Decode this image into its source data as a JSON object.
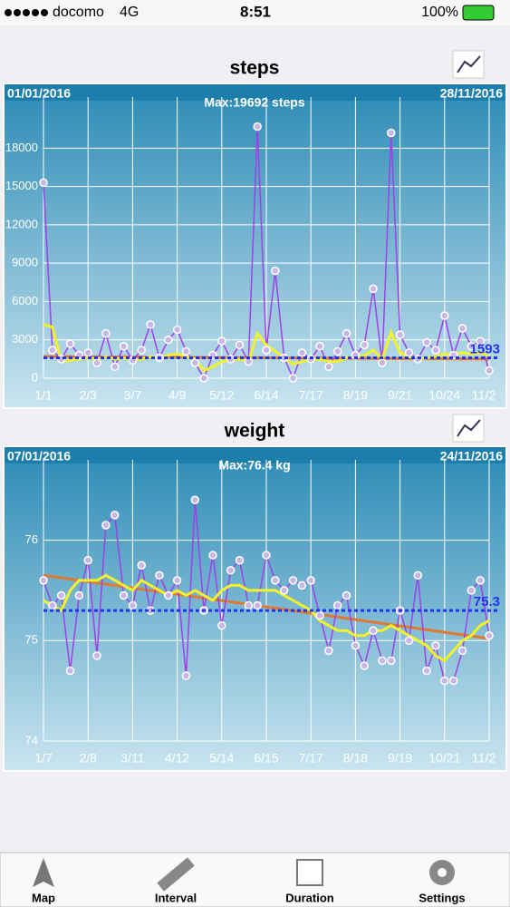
{
  "status_bar": {
    "carrier": "docomo",
    "network": "4G",
    "time": "8:51",
    "battery": "100%"
  },
  "tabs": [
    "Map",
    "Interval",
    "Duration",
    "Settings"
  ],
  "chart_data": [
    {
      "type": "line",
      "title": "steps",
      "start_date": "01/01/2016",
      "end_date": "28/11/2016",
      "max_label": "Max:19692 steps",
      "categories": [
        "1/1",
        null,
        null,
        null,
        null,
        "2/3",
        null,
        null,
        null,
        null,
        "3/7",
        null,
        null,
        null,
        null,
        "4/9",
        null,
        null,
        null,
        null,
        "5/12",
        null,
        null,
        null,
        null,
        "6/14",
        null,
        null,
        null,
        null,
        "7/17",
        null,
        null,
        null,
        null,
        "8/19",
        null,
        null,
        null,
        null,
        "9/21",
        null,
        null,
        null,
        null,
        "10/24",
        null,
        null,
        null,
        null,
        "11/2"
      ],
      "series": [
        {
          "color": "#a040e8",
          "values": [
            15300,
            2200,
            1500,
            2700,
            1800,
            2000,
            1200,
            3500,
            900,
            2500,
            1400,
            2200,
            4200,
            1600,
            3000,
            3800,
            2100,
            1200,
            0,
            1800,
            2900,
            1500,
            2600,
            1300,
            19692,
            2200,
            8400,
            1600,
            0,
            2000,
            1500,
            2500,
            900,
            2100,
            3500,
            1800,
            2600,
            7000,
            1200,
            19200,
            3400,
            2000,
            1500,
            2800,
            2200,
            4900,
            1800,
            3900,
            2500,
            2900,
            600
          ]
        },
        {
          "color": "#f2f22a",
          "values": [
            4200,
            4000,
            1300,
            1400,
            1500,
            1600,
            1500,
            1700,
            1500,
            1600,
            1400,
            1500,
            1700,
            1600,
            1800,
            1900,
            1700,
            1500,
            600,
            900,
            1300,
            1400,
            1500,
            1300,
            3500,
            2600,
            2100,
            1600,
            1100,
            1300,
            1400,
            1500,
            1300,
            1300,
            1600,
            1700,
            1800,
            2200,
            1500,
            3600,
            2000,
            1700,
            1500,
            1600,
            1700,
            1900,
            1800,
            2000,
            1900,
            2000,
            1700
          ]
        }
      ],
      "trend_line": {
        "color": "#e07a30",
        "values": [
          1700,
          1500
        ]
      },
      "mean_line": {
        "color": "#2233ee",
        "value": 1593
      },
      "ylim": [
        0,
        22000
      ],
      "yticks": [
        0,
        3000,
        6000,
        9000,
        12000,
        15000,
        18000
      ],
      "grid": true
    },
    {
      "type": "line",
      "title": "weight",
      "start_date": "07/01/2016",
      "end_date": "24/11/2016",
      "max_label": "Max:76.4 kg",
      "categories": [
        "1/7",
        null,
        null,
        null,
        null,
        "2/8",
        null,
        null,
        null,
        null,
        "3/11",
        null,
        null,
        null,
        null,
        "4/12",
        null,
        null,
        null,
        null,
        "5/14",
        null,
        null,
        null,
        null,
        "6/15",
        null,
        null,
        null,
        null,
        "7/17",
        null,
        null,
        null,
        null,
        "8/18",
        null,
        null,
        null,
        null,
        "9/19",
        null,
        null,
        null,
        null,
        "10/21",
        null,
        null,
        null,
        null,
        "11/2"
      ],
      "series": [
        {
          "color": "#a040e8",
          "values": [
            75.6,
            75.35,
            75.45,
            74.7,
            75.45,
            75.8,
            74.85,
            76.15,
            76.25,
            75.45,
            75.35,
            75.75,
            75.3,
            75.65,
            75.45,
            75.6,
            74.65,
            76.4,
            75.3,
            75.85,
            75.15,
            75.7,
            75.8,
            75.35,
            75.35,
            75.85,
            75.6,
            75.5,
            75.6,
            75.55,
            75.6,
            75.25,
            74.9,
            75.35,
            75.45,
            74.95,
            74.75,
            75.1,
            74.8,
            74.8,
            75.3,
            75.0,
            75.65,
            74.7,
            74.95,
            74.6,
            74.6,
            74.9,
            75.5,
            75.6,
            75.05
          ]
        },
        {
          "color": "#f2f22a",
          "values": [
            75.4,
            75.35,
            75.3,
            75.5,
            75.6,
            75.6,
            75.6,
            75.65,
            75.6,
            75.55,
            75.5,
            75.6,
            75.55,
            75.5,
            75.45,
            75.5,
            75.45,
            75.5,
            75.45,
            75.4,
            75.5,
            75.55,
            75.55,
            75.5,
            75.5,
            75.5,
            75.5,
            75.45,
            75.4,
            75.35,
            75.3,
            75.2,
            75.15,
            75.1,
            75.1,
            75.05,
            75.05,
            75.1,
            75.1,
            75.15,
            75.1,
            75.05,
            75.0,
            74.95,
            74.85,
            74.8,
            74.9,
            75.0,
            75.05,
            75.15,
            75.2
          ]
        }
      ],
      "trend_line": {
        "color": "#e07a30",
        "values": [
          75.65,
          75.02
        ]
      },
      "mean_line": {
        "color": "#2233ee",
        "value": 75.3
      },
      "ylim": [
        74,
        76.8
      ],
      "yticks": [
        74,
        75,
        76
      ],
      "grid": true
    }
  ]
}
